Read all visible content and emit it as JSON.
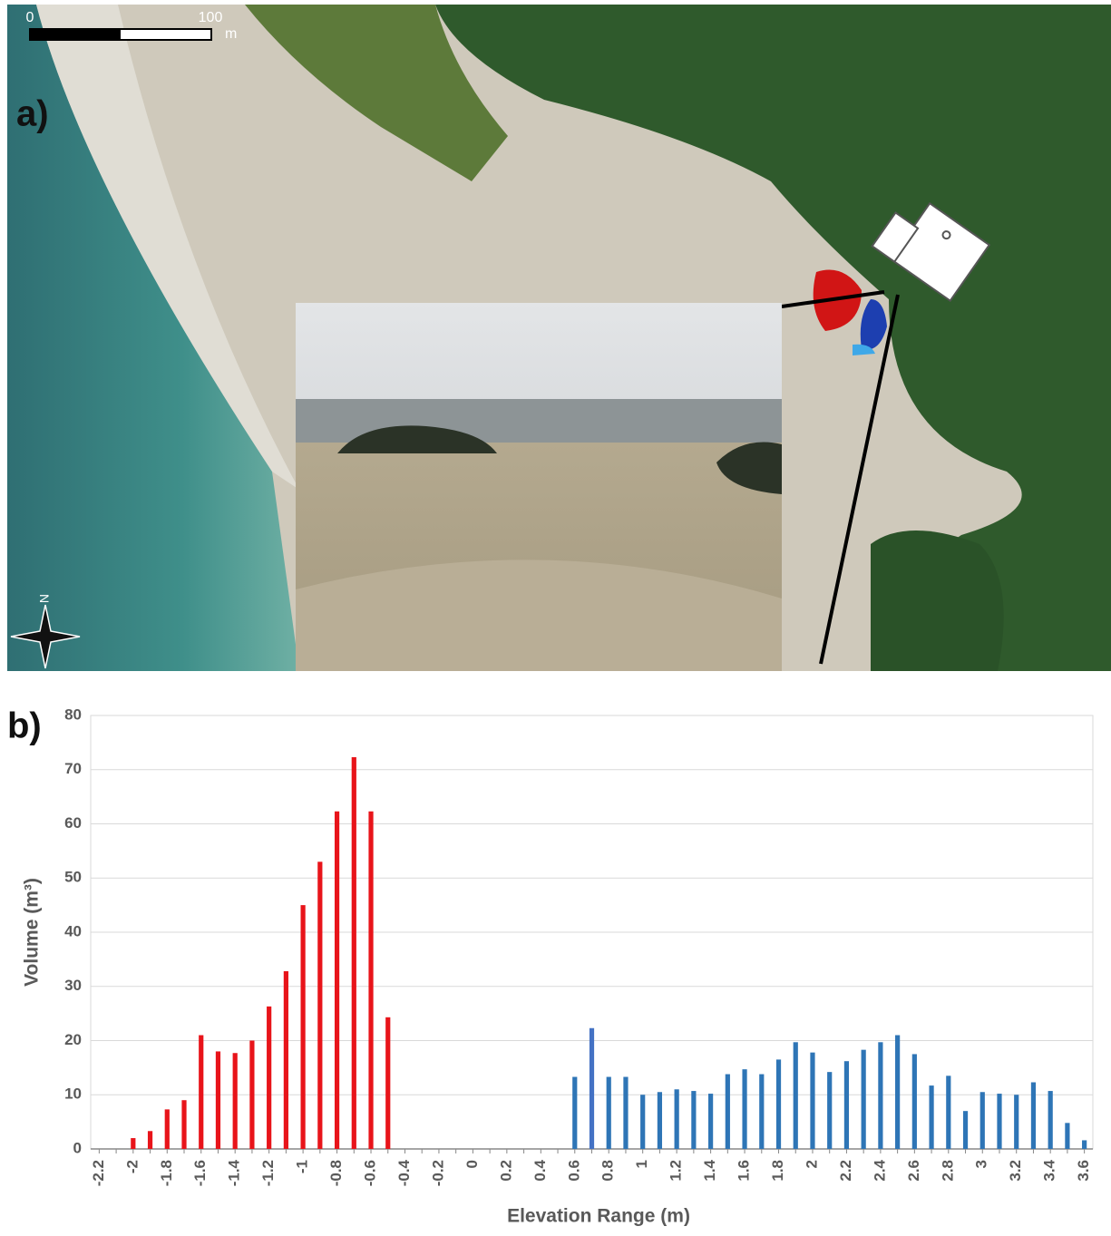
{
  "panel_a": {
    "label": "a)",
    "scale_bar": {
      "start": "0",
      "end": "100",
      "unit": "m"
    },
    "north": "N"
  },
  "chart_data": {
    "type": "bar",
    "panel_label": "b)",
    "x_label": "Elevation Range (m)",
    "y_label": "Volume (m³)",
    "categories": [
      "-2.2",
      null,
      "-2",
      null,
      "-1.8",
      null,
      "-1.6",
      null,
      "-1.4",
      null,
      "-1.2",
      null,
      "-1",
      null,
      "-0.8",
      null,
      "-0.6",
      null,
      "-0.4",
      null,
      "-0.2",
      null,
      "0",
      null,
      "0.2",
      null,
      "0.4",
      null,
      "0.6",
      null,
      "0.8",
      null,
      "1",
      null,
      "1.2",
      null,
      "1.4",
      null,
      "1.6",
      null,
      "1.8",
      null,
      "2",
      null,
      "2.2",
      null,
      "2.4",
      null,
      "2.6",
      null,
      "2.8",
      null,
      "3",
      null,
      "3.2",
      null,
      "3.4",
      null,
      "3.6"
    ],
    "values": [
      0,
      0,
      2,
      3.3,
      7.3,
      9,
      21,
      18,
      17.7,
      20,
      26.3,
      32.8,
      45,
      53,
      62.3,
      72.3,
      62.3,
      24.3,
      0,
      0,
      0,
      0,
      0,
      0,
      0,
      0,
      0,
      0,
      13.3,
      22.3,
      13.3,
      13.3,
      10,
      10.5,
      11,
      10.7,
      10.2,
      13.8,
      14.7,
      13.8,
      16.5,
      19.7,
      17.8,
      14.2,
      16.2,
      18.3,
      19.7,
      21,
      17.5,
      11.7,
      13.5,
      7,
      10.5,
      10.2,
      10,
      12.3,
      10.7,
      4.8,
      1.6
    ],
    "colors": [
      "#e8141a",
      "#e8141a",
      "#e8141a",
      "#e8141a",
      "#e8141a",
      "#e8141a",
      "#e8141a",
      "#e8141a",
      "#e8141a",
      "#e8141a",
      "#e8141a",
      "#e8141a",
      "#e8141a",
      "#e8141a",
      "#e8141a",
      "#e8141a",
      "#e8141a",
      "#e8141a",
      "#e8141a",
      "#e8141a",
      "#e8141a",
      "#e8141a",
      "#e8141a",
      "#2e75b6",
      "#2e75b6",
      "#2e75b6",
      "#2e75b6",
      "#2e75b6",
      "#2e75b6",
      "#4472c4",
      "#2e75b6",
      "#2e75b6",
      "#2e75b6",
      "#2e75b6",
      "#2e75b6",
      "#2e75b6",
      "#2e75b6",
      "#2e75b6",
      "#2e75b6",
      "#2e75b6",
      "#2e75b6",
      "#2e75b6",
      "#2e75b6",
      "#2e75b6",
      "#2e75b6",
      "#2e75b6",
      "#2e75b6",
      "#2e75b6",
      "#2e75b6",
      "#2e75b6",
      "#2e75b6",
      "#2e75b6",
      "#2e75b6",
      "#2e75b6",
      "#2e75b6",
      "#2e75b6",
      "#2e75b6",
      "#2e75b6",
      "#2e75b6"
    ],
    "ylim": [
      0,
      80
    ],
    "yticks": [
      0,
      10,
      20,
      30,
      40,
      50,
      60,
      70,
      80
    ],
    "grid": true
  }
}
